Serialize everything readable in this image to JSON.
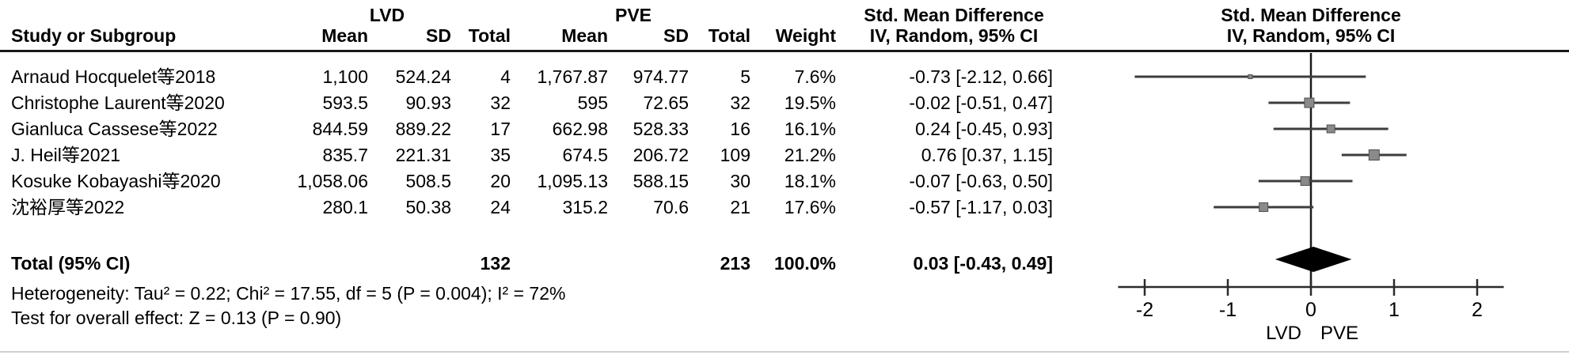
{
  "header": {
    "group_left": "LVD",
    "group_right": "PVE",
    "col_study": "Study or Subgroup",
    "col_mean": "Mean",
    "col_sd": "SD",
    "col_total": "Total",
    "col_weight": "Weight",
    "smd_title": "Std. Mean Difference",
    "smd_subtitle": "IV, Random, 95% CI"
  },
  "footnotes": {
    "heterogeneity": "Heterogeneity: Tau² = 0.22; Chi² = 17.55, df = 5 (P = 0.004); I² = 72%",
    "overall_effect": "Test for overall effect: Z = 0.13 (P = 0.90)"
  },
  "colors": {
    "text": "#000000",
    "rule": "#1a1a1a",
    "ci_line": "#3d3d3d",
    "marker_fill": "#8a8a8a",
    "marker_stroke": "#4f4f4f",
    "diamond": "#000000",
    "axis": "#2b2b2b"
  },
  "chart_data": {
    "type": "forest",
    "effect_measure": "Std. Mean Difference",
    "method": "IV, Random, 95% CI",
    "groups": {
      "experimental": "LVD",
      "control": "PVE"
    },
    "studies": [
      {
        "name": "Arnaud Hocquelet等2018",
        "lvd": {
          "mean": "1,100",
          "sd": "524.24",
          "total": "4"
        },
        "pve": {
          "mean": "1,767.87",
          "sd": "974.77",
          "total": "5"
        },
        "weight": "7.6%",
        "weight_pct": 7.6,
        "smd": -0.73,
        "ci_low": -2.12,
        "ci_high": 0.66,
        "ci_text": "-0.73 [-2.12, 0.66]"
      },
      {
        "name": "Christophe Laurent等2020",
        "lvd": {
          "mean": "593.5",
          "sd": "90.93",
          "total": "32"
        },
        "pve": {
          "mean": "595",
          "sd": "72.65",
          "total": "32"
        },
        "weight": "19.5%",
        "weight_pct": 19.5,
        "smd": -0.02,
        "ci_low": -0.51,
        "ci_high": 0.47,
        "ci_text": "-0.02 [-0.51, 0.47]"
      },
      {
        "name": "Gianluca Cassese等2022",
        "lvd": {
          "mean": "844.59",
          "sd": "889.22",
          "total": "17"
        },
        "pve": {
          "mean": "662.98",
          "sd": "528.33",
          "total": "16"
        },
        "weight": "16.1%",
        "weight_pct": 16.1,
        "smd": 0.24,
        "ci_low": -0.45,
        "ci_high": 0.93,
        "ci_text": "0.24 [-0.45, 0.93]"
      },
      {
        "name": "J. Heil等2021",
        "lvd": {
          "mean": "835.7",
          "sd": "221.31",
          "total": "35"
        },
        "pve": {
          "mean": "674.5",
          "sd": "206.72",
          "total": "109"
        },
        "weight": "21.2%",
        "weight_pct": 21.2,
        "smd": 0.76,
        "ci_low": 0.37,
        "ci_high": 1.15,
        "ci_text": "0.76 [0.37, 1.15]"
      },
      {
        "name": "Kosuke Kobayashi等2020",
        "lvd": {
          "mean": "1,058.06",
          "sd": "508.5",
          "total": "20"
        },
        "pve": {
          "mean": "1,095.13",
          "sd": "588.15",
          "total": "30"
        },
        "weight": "18.1%",
        "weight_pct": 18.1,
        "smd": -0.07,
        "ci_low": -0.63,
        "ci_high": 0.5,
        "ci_text": "-0.07 [-0.63, 0.50]"
      },
      {
        "name": "沈裕厚等2022",
        "lvd": {
          "mean": "280.1",
          "sd": "50.38",
          "total": "24"
        },
        "pve": {
          "mean": "315.2",
          "sd": "70.6",
          "total": "21"
        },
        "weight": "17.6%",
        "weight_pct": 17.6,
        "smd": -0.57,
        "ci_low": -1.17,
        "ci_high": 0.03,
        "ci_text": "-0.57 [-1.17, 0.03]"
      }
    ],
    "total": {
      "label": "Total (95% CI)",
      "lvd_total": "132",
      "pve_total": "213",
      "weight": "100.0%",
      "weight_pct": 100.0,
      "smd": 0.03,
      "ci_low": -0.43,
      "ci_high": 0.49,
      "ci_text": "0.03 [-0.43, 0.49]"
    },
    "axis": {
      "ticks": [
        -2,
        -1,
        0,
        1,
        2
      ],
      "xmin": -2.32,
      "xmax": 2.32,
      "favours_left": "LVD",
      "favours_right": "PVE"
    }
  }
}
